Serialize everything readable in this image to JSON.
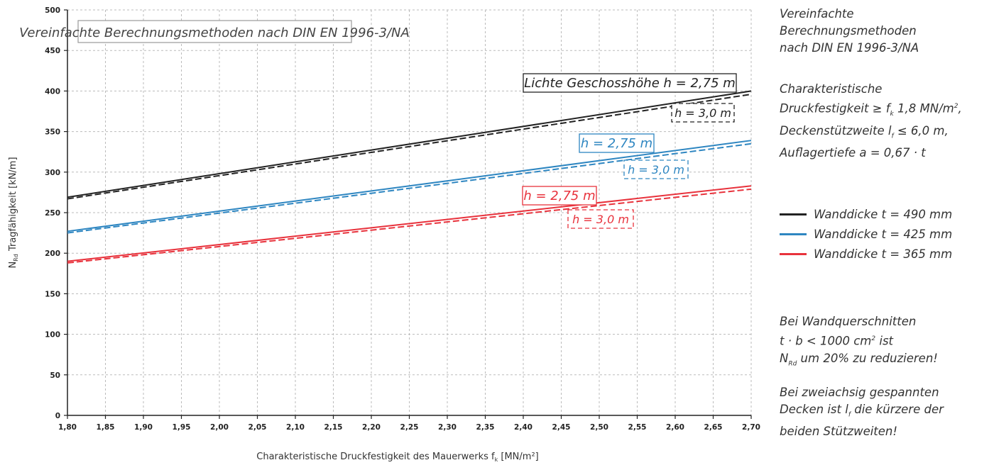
{
  "chart_data": {
    "type": "line",
    "title": "Vereinfachte Berechnungsmethoden nach DIN EN 1996-3/NA",
    "xlabel": "Charakteristische Druckfestigkeit des Mauerwerks f",
    "xlabel_sub": "k",
    "xlabel_unit": " [MN/m²]",
    "ylabel": "N",
    "ylabel_sub": "Rd",
    "ylabel_rest": " Tragfähigkeit [kN/m]",
    "xlim": [
      1.8,
      2.7
    ],
    "ylim": [
      0,
      500
    ],
    "x_ticks": [
      "1,80",
      "1,85",
      "1,90",
      "1,95",
      "2,00",
      "2,05",
      "2,10",
      "2,15",
      "2,20",
      "2,25",
      "2,30",
      "2,35",
      "2,40",
      "2,45",
      "2,50",
      "2,55",
      "2,60",
      "2,65",
      "2,70"
    ],
    "y_ticks": [
      "0",
      "50",
      "100",
      "150",
      "200",
      "250",
      "300",
      "350",
      "400",
      "450",
      "500"
    ],
    "grid": true,
    "series": [
      {
        "name": "Wanddicke t = 490 mm",
        "color": "#222222",
        "style": "solid",
        "label": "Lichte Geschosshöhe h = 2,75 m",
        "x": [
          1.8,
          2.7
        ],
        "y": [
          269,
          400
        ]
      },
      {
        "color": "#222222",
        "style": "dashed",
        "label": "h = 3,0 m",
        "x": [
          1.8,
          2.7
        ],
        "y": [
          267,
          396
        ]
      },
      {
        "name": "Wanddicke t = 425 mm",
        "color": "#2e86c1",
        "style": "solid",
        "label": "h = 2,75 m",
        "x": [
          1.8,
          2.7
        ],
        "y": [
          227,
          339
        ]
      },
      {
        "color": "#2e86c1",
        "style": "dashed",
        "label": "h = 3,0 m",
        "x": [
          1.8,
          2.7
        ],
        "y": [
          225,
          335
        ]
      },
      {
        "name": "Wanddicke t = 365 mm",
        "color": "#e8323c",
        "style": "solid",
        "label": "h = 2,75 m",
        "x": [
          1.8,
          2.7
        ],
        "y": [
          190,
          283
        ]
      },
      {
        "color": "#e8323c",
        "style": "dashed",
        "label": "h = 3,0 m",
        "x": [
          1.8,
          2.7
        ],
        "y": [
          188,
          279
        ]
      }
    ]
  },
  "notes": {
    "title_lines": [
      "Vereinfachte",
      "Berechnungsmethoden",
      "nach DIN EN 1996-3/NA"
    ],
    "cond_1a": "Charakteristische",
    "cond_2a": "Druckfestigkeit ≥ f",
    "cond_2b": "k",
    "cond_2c": " 1,8 MN/m",
    "cond_2d": "2",
    "cond_2e": ",",
    "cond_3a": "Deckenstützweite l",
    "cond_3b": "f",
    "cond_3c": " ≤ 6,0 m,",
    "cond_4": "Auflagertiefe a = 0,67 · t",
    "warn_1": "Bei Wandquerschnitten",
    "warn_2a": "t · b < 1000 cm",
    "warn_2b": "2",
    "warn_2c": " ist",
    "warn_3a": "N",
    "warn_3b": "Rd",
    "warn_3c": " um 20% zu reduzieren!",
    "span_1": "Bei zweiachsig gespannten",
    "span_2a": "Decken ist l",
    "span_2b": "f",
    "span_2c": " die kürzere der",
    "span_3": "beiden Stützweiten!"
  }
}
